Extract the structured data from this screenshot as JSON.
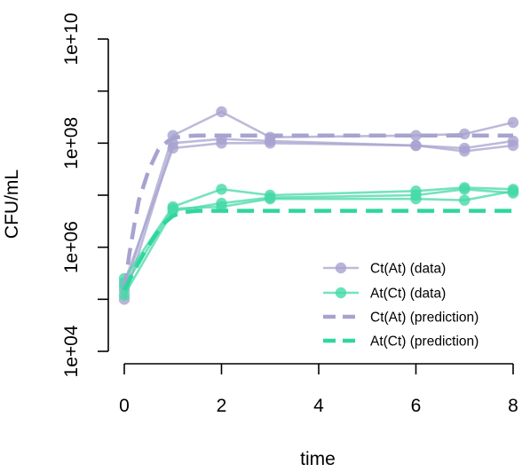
{
  "chart_data": {
    "type": "line",
    "xlabel": "time",
    "ylabel": "CFU/mL",
    "xlim": [
      0,
      8
    ],
    "ylim_log10": [
      4,
      10
    ],
    "y_scale": "log10",
    "x_ticks": [
      0,
      2,
      4,
      6,
      8
    ],
    "x_tick_labels": [
      "0",
      "2",
      "4",
      "6",
      "8"
    ],
    "y_ticks": [
      10000,
      1000000,
      100000000,
      10000000000
    ],
    "y_tick_labels": [
      "1e+04",
      "1e+06",
      "1e+08",
      "1e+10"
    ],
    "y_minor_ticks": [
      100000,
      10000000,
      1000000000
    ],
    "grid": false,
    "legend_position": "bottom-right",
    "colors": {
      "ct_data": "#a7a3cf",
      "at_data": "#46d9a6",
      "ct_pred": "#a7a3cf",
      "at_pred": "#2fd69e"
    },
    "series": [
      {
        "name": "Ct(At) (data)",
        "kind": "data",
        "color_key": "ct_data",
        "replicates": [
          {
            "x": [
              0,
              1,
              2,
              3,
              6,
              7,
              8
            ],
            "y": [
              150000,
              140000000,
              400000000,
              130000000,
              140000000,
              150000000,
              250000000
            ]
          },
          {
            "x": [
              0,
              1,
              2,
              3,
              6,
              7,
              8
            ],
            "y": [
              100000,
              100000000,
              120000000,
              110000000,
              90000000,
              80000000,
              110000000
            ]
          },
          {
            "x": [
              0,
              1,
              2,
              3,
              6,
              7,
              8
            ],
            "y": [
              210000,
              80000000,
              100000000,
              100000000,
              90000000,
              70000000,
              90000000
            ]
          }
        ]
      },
      {
        "name": "At(Ct) (data)",
        "kind": "data",
        "color_key": "at_data",
        "replicates": [
          {
            "x": [
              0,
              1,
              2,
              3,
              6,
              7,
              8
            ],
            "y": [
              250000,
              6000000,
              13000000,
              10000000,
              12000000,
              14000000,
              13000000
            ]
          },
          {
            "x": [
              0,
              1,
              2,
              3,
              6,
              7,
              8
            ],
            "y": [
              120000,
              5000000,
              7000000,
              9000000,
              10000000,
              13000000,
              11000000
            ]
          },
          {
            "x": [
              0,
              1,
              2,
              3,
              6,
              7,
              8
            ],
            "y": [
              180000,
              5500000,
              6000000,
              8500000,
              8500000,
              8000000,
              12000000
            ]
          }
        ]
      },
      {
        "name": "Ct(At) (prediction)",
        "kind": "prediction",
        "color_key": "ct_pred",
        "x": [
          0,
          0.1,
          0.2,
          0.3,
          0.5,
          0.7,
          0.9,
          1,
          1.2,
          1.5,
          2,
          3,
          4,
          5,
          6,
          7,
          8
        ],
        "y": [
          150000,
          700000,
          2500000,
          8000000,
          30000000,
          75000000,
          110000000,
          125000000,
          135000000,
          140000000,
          140000000,
          140000000,
          140000000,
          140000000,
          140000000,
          140000000,
          140000000
        ]
      },
      {
        "name": "At(Ct) (prediction)",
        "kind": "prediction",
        "color_key": "at_pred",
        "x": [
          0,
          0.2,
          0.4,
          0.6,
          0.8,
          1,
          1.2,
          1.5,
          2,
          3,
          4,
          5,
          6,
          7,
          8
        ],
        "y": [
          150000,
          350000,
          750000,
          1500000,
          2800000,
          4000000,
          4700000,
          5000000,
          5000000,
          5000000,
          5000000,
          5000000,
          5000000,
          5000000,
          5000000
        ]
      }
    ]
  }
}
